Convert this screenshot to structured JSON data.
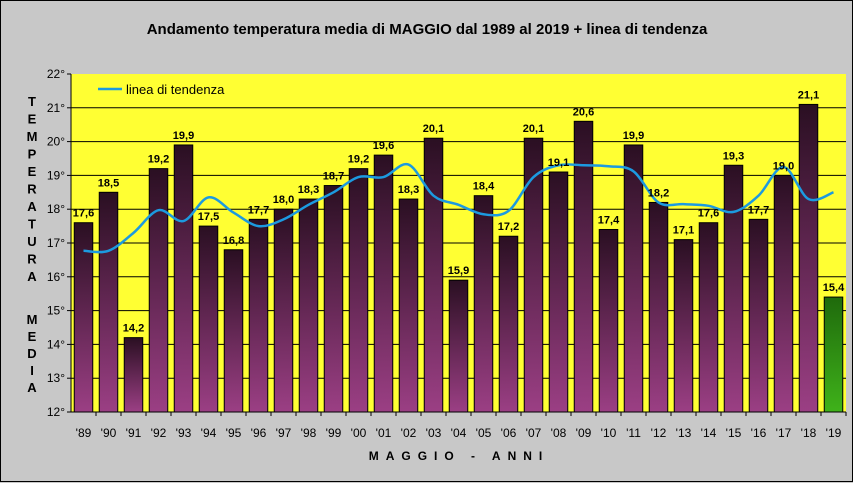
{
  "chart_data": {
    "type": "bar",
    "title": "Andamento temperatura media di MAGGIO dal 1989 al 2019 + linea di tendenza",
    "xlabel": "MAGGIO - ANNI",
    "ylabel_top": "TEMPERATURA",
    "ylabel_bottom": "MEDIA",
    "ylim": [
      12,
      22
    ],
    "y_ticks": [
      "12°",
      "13°",
      "14°",
      "15°",
      "16°",
      "17°",
      "18°",
      "19°",
      "20°",
      "21°",
      "22°"
    ],
    "categories": [
      "'89",
      "'90",
      "'91",
      "'92",
      "'93",
      "'94",
      "'95",
      "'96",
      "'97",
      "'98",
      "'99",
      "'00",
      "'01",
      "'02",
      "'03",
      "'04",
      "'05",
      "'06",
      "'07",
      "'08",
      "'09",
      "'10",
      "'11",
      "'12",
      "'13",
      "'14",
      "'15",
      "'16",
      "'17",
      "'18",
      "'19"
    ],
    "values": [
      17.6,
      18.5,
      14.2,
      19.2,
      19.9,
      17.5,
      16.8,
      17.7,
      18.0,
      18.3,
      18.7,
      19.2,
      19.6,
      18.3,
      20.1,
      15.9,
      18.4,
      17.2,
      20.1,
      19.1,
      20.6,
      17.4,
      19.9,
      18.2,
      17.1,
      17.6,
      19.3,
      17.7,
      19.0,
      21.1,
      15.4
    ],
    "value_labels": [
      "17,6",
      "18,5",
      "14,2",
      "19,2",
      "19,9",
      "17,5",
      "16,8",
      "17,7",
      "18,0",
      "18,3",
      "18,7",
      "19,2",
      "19,6",
      "18,3",
      "20,1",
      "15,9",
      "18,4",
      "17,2",
      "20,1",
      "19,1",
      "20,6",
      "17,4",
      "19,9",
      "18,2",
      "17,1",
      "17,6",
      "19,3",
      "17,7",
      "19,0",
      "21,1",
      "15,4"
    ],
    "highlight_index": 30,
    "trend": {
      "name": "linea di tendenza",
      "values": [
        16.77,
        16.77,
        17.3,
        17.97,
        17.65,
        18.35,
        17.9,
        17.5,
        17.7,
        18.13,
        18.5,
        18.95,
        18.95,
        19.32,
        18.4,
        18.13,
        17.85,
        17.95,
        18.95,
        19.3,
        19.3,
        19.27,
        19.12,
        18.2,
        18.15,
        18.1,
        17.92,
        18.4,
        19.25,
        18.3,
        18.5
      ]
    },
    "legend_position": "top-left",
    "grid": true
  },
  "colors": {
    "plot_bg": "#ffff33",
    "frame_bg": "#c8c8c8",
    "bar_top": "#2a0f22",
    "bar_bottom": "#9b3f84",
    "highlight_top": "#1f6a0c",
    "highlight_bottom": "#3fb21a",
    "highlight_label": "#27a11e",
    "trend": "#1c9ae0",
    "grid": "#000000"
  }
}
